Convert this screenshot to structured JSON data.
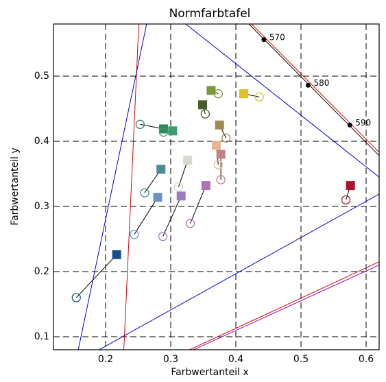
{
  "chart_data": {
    "type": "scatter",
    "title": "Normfarbtafel",
    "x_label": "Farbwertanteil x",
    "y_label": "Farbwertanteil y",
    "xlim": [
      0.12,
      0.62
    ],
    "ylim": [
      0.08,
      0.58
    ],
    "xticks": [
      0.2,
      0.3,
      0.4,
      0.5,
      0.6
    ],
    "yticks": [
      0.1,
      0.2,
      0.3,
      0.4,
      0.5
    ],
    "grid": true,
    "targets": {
      "x": [
        0.217,
        0.285,
        0.28,
        0.289,
        0.303,
        0.316,
        0.326,
        0.354,
        0.349,
        0.362,
        0.412,
        0.375,
        0.37,
        0.377,
        0.576
      ],
      "y": [
        0.226,
        0.357,
        0.314,
        0.419,
        0.416,
        0.316,
        0.371,
        0.332,
        0.456,
        0.478,
        0.473,
        0.425,
        0.394,
        0.38,
        0.332
      ],
      "colors": [
        "#15508a",
        "#4b8b98",
        "#6a92c2",
        "#2a8a5c",
        "#3c9c6c",
        "#9a7cc0",
        "#d8d8d0",
        "#b070b4",
        "#4b5a2a",
        "#7a9a3a",
        "#e0c020",
        "#a08a50",
        "#e8b492",
        "#c08282",
        "#b01030"
      ]
    },
    "measurements": {
      "x": [
        0.155,
        0.26,
        0.244,
        0.253,
        0.289,
        0.288,
        0.312,
        0.33,
        0.353,
        0.373,
        0.436,
        0.385,
        0.373,
        0.377,
        0.569
      ],
      "y": [
        0.16,
        0.321,
        0.257,
        0.426,
        0.414,
        0.254,
        0.33,
        0.274,
        0.442,
        0.473,
        0.468,
        0.405,
        0.364,
        0.341,
        0.31
      ]
    },
    "lines": [
      {
        "color": "#e00000",
        "x": [
          0.251,
          0.228
        ],
        "y": [
          0.58,
          0.08
        ]
      },
      {
        "color": "#0000e0",
        "x": [
          0.263,
          0.158
        ],
        "y": [
          0.58,
          0.08
        ]
      },
      {
        "color": "#0000e0",
        "x": [
          0.323,
          0.62
        ],
        "y": [
          0.58,
          0.345
        ]
      },
      {
        "color": "#0000e0",
        "x": [
          0.19,
          0.62
        ],
        "y": [
          0.08,
          0.319
        ]
      },
      {
        "color": "#e00000",
        "x": [
          0.329,
          0.62
        ],
        "y": [
          0.08,
          0.215
        ]
      },
      {
        "color": "#a000c0",
        "x": [
          0.335,
          0.62
        ],
        "y": [
          0.08,
          0.21
        ]
      },
      {
        "color": "#e00000",
        "x": [
          0.424,
          0.62
        ],
        "y": [
          0.58,
          0.383
        ]
      },
      {
        "color": "#000000",
        "x": [
          0.42,
          0.62
        ],
        "y": [
          0.58,
          0.378
        ]
      }
    ],
    "wavelengths": {
      "x": [
        0.443,
        0.511,
        0.575
      ],
      "y": [
        0.556,
        0.486,
        0.425
      ],
      "labels": [
        "570",
        "580",
        "590"
      ]
    }
  }
}
